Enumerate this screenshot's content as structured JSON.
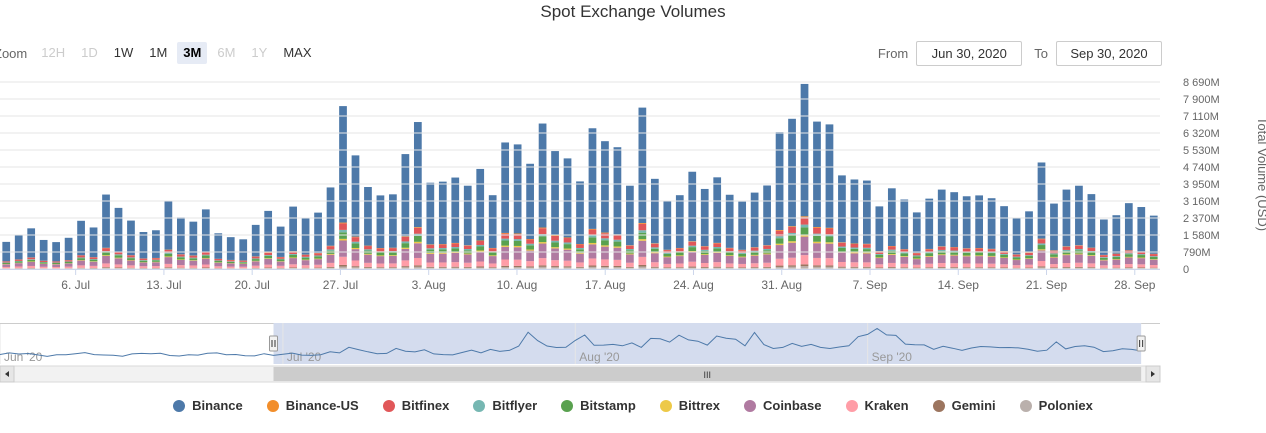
{
  "title": "Spot Exchange Volumes",
  "zoom": {
    "label": "Zoom",
    "buttons": [
      {
        "label": "12H",
        "state": "disabled"
      },
      {
        "label": "1D",
        "state": "disabled"
      },
      {
        "label": "1W",
        "state": "normal"
      },
      {
        "label": "1M",
        "state": "normal"
      },
      {
        "label": "3M",
        "state": "active"
      },
      {
        "label": "6M",
        "state": "disabled"
      },
      {
        "label": "1Y",
        "state": "disabled"
      },
      {
        "label": "MAX",
        "state": "normal"
      }
    ]
  },
  "range": {
    "from_label": "From",
    "from_value": "Jun 30, 2020",
    "to_label": "To",
    "to_value": "Sep 30, 2020"
  },
  "navigator": {
    "labels": [
      "Jun '20",
      "Jul '20",
      "Aug '20",
      "Sep '20"
    ],
    "scroll_grip": "III",
    "selected_from": "Jun 30, 2020",
    "selected_to": "Sep 30, 2020"
  },
  "colors": {
    "Binance": "#4d79a9",
    "Binance-US": "#f28e2b",
    "Bitfinex": "#e15759",
    "Bitflyer": "#76b7b2",
    "Bitstamp": "#59a14f",
    "Bittrex": "#edc948",
    "Coinbase": "#b07aa1",
    "Kraken": "#ff9da7",
    "Gemini": "#9c755f",
    "Poloniex": "#bab0ac",
    "navigator_fill": "#d4dcee",
    "navigator_line": "#4d79a9"
  },
  "chart_data": {
    "type": "bar",
    "stacked": true,
    "ylabel": "Total Volume (USD)",
    "yticks": [
      "0",
      "790M",
      "1 580M",
      "2 370M",
      "3 160M",
      "3 950M",
      "4 740M",
      "5 530M",
      "6 320M",
      "7 110M",
      "7 900M",
      "8 690M"
    ],
    "ylim": [
      0,
      8690
    ],
    "y_unit": "M USD",
    "xticks": [
      "6. Jul",
      "13. Jul",
      "20. Jul",
      "27. Jul",
      "3. Aug",
      "10. Aug",
      "17. Aug",
      "24. Aug",
      "31. Aug",
      "7. Sep",
      "14. Sep",
      "21. Sep",
      "28. Sep"
    ],
    "x_start": "Jun 30, 2020",
    "x_end": "Sep 30, 2020",
    "legend_position": "bottom",
    "series_names": [
      "Binance",
      "Binance-US",
      "Bitfinex",
      "Bitflyer",
      "Bitstamp",
      "Bittrex",
      "Coinbase",
      "Kraken",
      "Gemini",
      "Poloniex"
    ],
    "totals": [
      1260,
      1560,
      1890,
      1350,
      1250,
      1450,
      2240,
      1930,
      3460,
      2840,
      2250,
      1720,
      1800,
      3160,
      2400,
      2200,
      2770,
      1660,
      1480,
      1380,
      2050,
      2700,
      1970,
      2900,
      2350,
      2620,
      3790,
      7570,
      5280,
      3810,
      3420,
      3470,
      5340,
      6830,
      4010,
      4060,
      4250,
      3870,
      4650,
      3430,
      5880,
      5790,
      4890,
      6760,
      5480,
      5140,
      4070,
      6540,
      5940,
      5660,
      3870,
      7500,
      4190,
      3140,
      3430,
      4520,
      3720,
      4260,
      3450,
      3130,
      3550,
      3880,
      6360,
      6980,
      8600,
      6850,
      6720,
      4350,
      4160,
      4110,
      2910,
      3750,
      3230,
      2630,
      3270,
      3690,
      3570,
      3380,
      3420,
      3290,
      2920,
      2380,
      2680,
      4950,
      3040,
      3690,
      3870,
      3480,
      2300,
      2500,
      3060,
      2880,
      2480
    ],
    "share_pct": {
      "Binance-US": 0.5,
      "Bitfinex": 4.0,
      "Bitflyer": 1.5,
      "Bitstamp": 4.0,
      "Bittrex": 1.0,
      "Coinbase": 10.0,
      "Kraken": 5.0,
      "Gemini": 1.0,
      "Poloniex": 1.5
    },
    "navigator_visible_from": "Jun 1, 2020",
    "navigator_visible_to": "Oct 2, 2020"
  },
  "legend": {
    "items": [
      "Binance",
      "Binance-US",
      "Bitfinex",
      "Bitflyer",
      "Bitstamp",
      "Bittrex",
      "Coinbase",
      "Kraken",
      "Gemini",
      "Poloniex"
    ]
  }
}
